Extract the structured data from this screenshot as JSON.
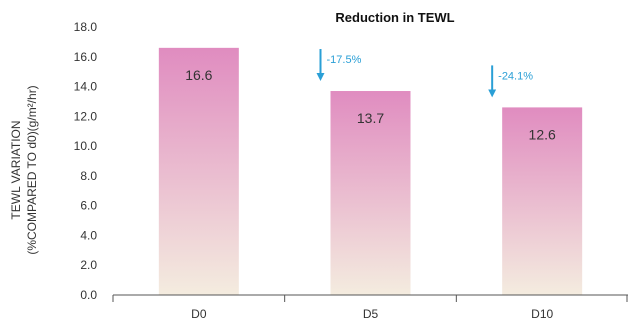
{
  "chart_data": {
    "type": "bar",
    "title": "Reduction in TEWL",
    "ylabel_line1": "TEWL VARIATION",
    "ylabel_line2": "(%COMPARED TO d0)(g/m²/hr)",
    "categories": [
      "D0",
      "D5",
      "D10"
    ],
    "values": [
      16.6,
      13.7,
      12.6
    ],
    "value_labels": [
      "16.6",
      "13.7",
      "12.6"
    ],
    "yticks": [
      "0.0",
      "2.0",
      "4.0",
      "6.0",
      "8.0",
      "10.0",
      "12.0",
      "14.0",
      "16.0",
      "18.0"
    ],
    "ylim": [
      0,
      18
    ],
    "annotations": [
      {
        "category": "D5",
        "text": "-17.5%"
      },
      {
        "category": "D10",
        "text": "-24.1%"
      }
    ],
    "grid": false,
    "colors": {
      "bar_top": "#e08cc0",
      "bar_bottom": "#f4ecdf",
      "annotation": "#2a9fd6",
      "axis": "#555555"
    }
  }
}
